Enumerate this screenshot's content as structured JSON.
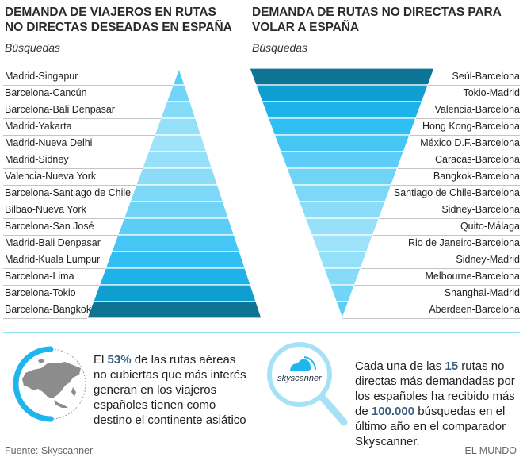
{
  "left_panel": {
    "title_line1": "DEMANDA DE VIAJEROS EN RUTAS",
    "title_line2": "NO DIRECTAS DESEADAS EN ESPAÑA",
    "subtitle": "Búsquedas"
  },
  "right_panel": {
    "title_line1": "DEMANDA DE RUTAS NO DIRECTAS PARA",
    "title_line2": "VOLAR A ESPAÑA",
    "subtitle": "Búsquedas"
  },
  "chart_data": [
    {
      "type": "bar",
      "title": "DEMANDA DE VIAJEROS EN RUTAS NO DIRECTAS DESEADAS EN ESPAÑA",
      "subtitle": "Búsquedas",
      "shape": "pyramid (rank order, top = rank 1 narrowest)",
      "categories": [
        "Madrid-Singapur",
        "Barcelona-Cancún",
        "Barcelona-Bali Denpasar",
        "Madrid-Yakarta",
        "Madrid-Nueva Delhi",
        "Madrid-Sidney",
        "Valencia-Nueva York",
        "Barcelona-Santiago de Chile",
        "Bilbao-Nueva York",
        "Barcelona-San José",
        "Madrid-Bali Denpasar",
        "Madrid-Kuala Lumpur",
        "Barcelona-Lima",
        "Barcelona-Tokio",
        "Barcelona-Bangkok"
      ],
      "colors": [
        "#5bcdf5",
        "#72d5f7",
        "#86dbf8",
        "#94e0f9",
        "#9fe3fa",
        "#96e1f9",
        "#8adcf8",
        "#7dd8f8",
        "#70d4f7",
        "#5ccdf6",
        "#45c6f5",
        "#2fbff3",
        "#1db3ea",
        "#0e9ed0",
        "#0e7496"
      ],
      "xlabel": "",
      "ylabel": ""
    },
    {
      "type": "bar",
      "title": "DEMANDA DE RUTAS NO DIRECTAS PARA VOLAR A ESPAÑA",
      "subtitle": "Búsquedas",
      "shape": "inverted pyramid (rank order, top = widest)",
      "categories": [
        "Seúl-Barcelona",
        "Tokio-Madrid",
        "Valencia-Barcelona",
        "Hong Kong-Barcelona",
        "México D.F.-Barcelona",
        "Caracas-Barcelona",
        "Bangkok-Barcelona",
        "Santiago de Chile-Barcelona",
        "Sidney-Barcelona",
        "Quito-Málaga",
        "Rio de Janeiro-Barcelona",
        "Sidney-Madrid",
        "Melbourne-Barcelona",
        "Shanghai-Madrid",
        "Aberdeen-Barcelona"
      ],
      "colors": [
        "#0e7496",
        "#0e9ed0",
        "#1db3ea",
        "#2fbff3",
        "#45c6f5",
        "#5ccdf6",
        "#70d4f7",
        "#7dd8f8",
        "#8adcf8",
        "#96e1f9",
        "#9fe3fa",
        "#94e0f9",
        "#86dbf8",
        "#72d5f7",
        "#5bcdf5"
      ],
      "xlabel": "",
      "ylabel": ""
    }
  ],
  "notes": {
    "left": {
      "pre": " El ",
      "highlight": "53%",
      "post": " de las rutas aéreas no cubiertas que más interés generan en los viajeros españoles tienen como destino el continente asiático",
      "icon": "asia-map-icon",
      "ring_percent": 53
    },
    "right": {
      "pre": "Cada una de las ",
      "highlight1": "15",
      "mid": " rutas no directas más demandadas por los españoles ha recibido más de ",
      "highlight2": "100.000",
      "post": " búsquedas en el último año en el comparador Skyscanner.",
      "icon": "magnifier-skyscanner-icon",
      "logo_text": "skyscanner"
    }
  },
  "footer": {
    "source": "Fuente: Skyscanner",
    "brand": "EL MUNDO"
  },
  "colors": {
    "accent": "#1fb6ee",
    "highlight_text": "#3b5f82",
    "separator": "#8fdcf5"
  }
}
